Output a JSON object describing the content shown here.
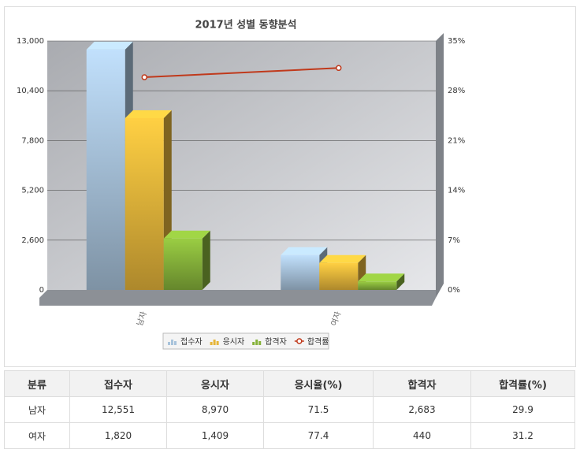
{
  "chart_data": {
    "type": "bar",
    "title": "2017년 성별 동향분석",
    "categories": [
      "남자",
      "여자"
    ],
    "series": [
      {
        "name": "접수자",
        "color": "#a8c3db",
        "values": [
          12551,
          1820
        ]
      },
      {
        "name": "응시자",
        "color": "#e6b53a",
        "values": [
          8970,
          1409
        ]
      },
      {
        "name": "합격자",
        "color": "#86b23a",
        "values": [
          2683,
          440
        ]
      },
      {
        "name": "합격률",
        "color": "#c0391b",
        "values": [
          29.9,
          31.2
        ],
        "axis": "y2",
        "type": "line"
      }
    ],
    "ylim": [
      0,
      13000
    ],
    "yticks": [
      0,
      {
        "value": 2600,
        "label": "2,600"
      },
      {
        "value": 5200,
        "label": "5,200"
      },
      {
        "value": 7800,
        "label": "7,800"
      },
      {
        "value": 10400,
        "label": "10,400"
      },
      {
        "value": 13000,
        "label": "13,000"
      }
    ],
    "y2lim": [
      0,
      35
    ],
    "y2ticks": [
      {
        "value": 0,
        "label": "0%"
      },
      {
        "value": 7,
        "label": "7%"
      },
      {
        "value": 14,
        "label": "14%"
      },
      {
        "value": 21,
        "label": "21%"
      },
      {
        "value": 28,
        "label": "28%"
      },
      {
        "value": 35,
        "label": "35%"
      }
    ],
    "grid": true
  },
  "table": {
    "header": [
      "분류",
      "접수자",
      "응시자",
      "응시율(%)",
      "합격자",
      "합격률(%)"
    ],
    "rows": [
      [
        "남자",
        "12,551",
        "8,970",
        "71.5",
        "2,683",
        "29.9"
      ],
      [
        "여자",
        "1,820",
        "1,409",
        "77.4",
        "440",
        "31.2"
      ]
    ]
  }
}
